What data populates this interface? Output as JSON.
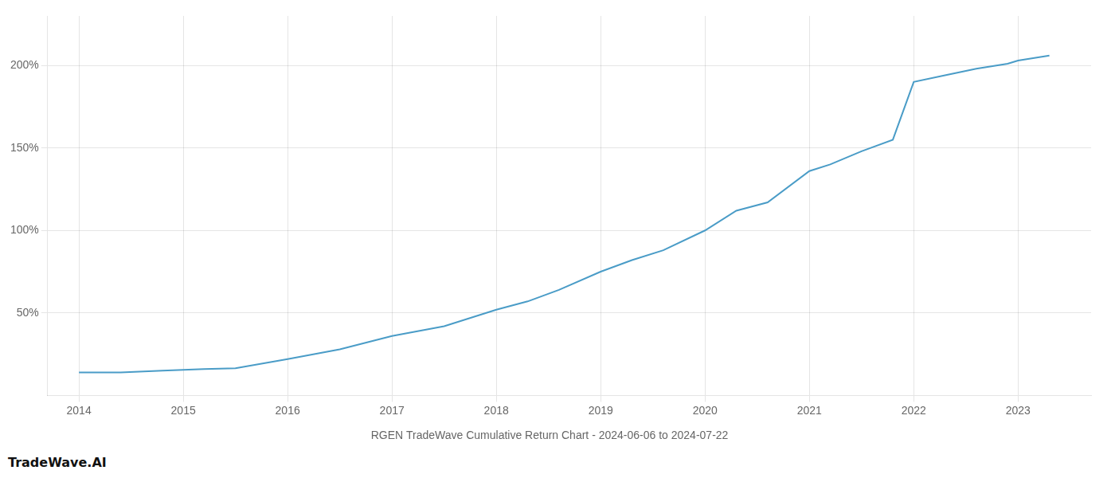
{
  "chart_data": {
    "type": "line",
    "title": "RGEN TradeWave Cumulative Return Chart - 2024-06-06 to 2024-07-22",
    "annotations": [
      "TradeWave.AI"
    ],
    "x": [
      2014.0,
      2014.4,
      2014.8,
      2015.0,
      2015.2,
      2015.5,
      2016.0,
      2016.5,
      2017.0,
      2017.5,
      2018.0,
      2018.3,
      2018.6,
      2019.0,
      2019.3,
      2019.6,
      2020.0,
      2020.3,
      2020.6,
      2021.0,
      2021.2,
      2021.5,
      2021.8,
      2022.0,
      2022.3,
      2022.6,
      2022.9,
      2023.0,
      2023.3
    ],
    "values": [
      14,
      14,
      15,
      15.5,
      16,
      16.5,
      22,
      28,
      36,
      42,
      52,
      57,
      64,
      75,
      82,
      88,
      100,
      112,
      117,
      136,
      140,
      148,
      155,
      190,
      194,
      198,
      201,
      203,
      206
    ],
    "color": "#4a9cc7",
    "xlim": [
      2013.7,
      2023.7
    ],
    "xticks": [
      2014,
      2015,
      2016,
      2017,
      2018,
      2019,
      2020,
      2021,
      2022,
      2023
    ],
    "ylim": [
      0,
      230
    ],
    "yticks": [
      {
        "value": 50,
        "label": "50%"
      },
      {
        "value": 100,
        "label": "100%"
      },
      {
        "value": 150,
        "label": "150%"
      },
      {
        "value": 200,
        "label": "200%"
      }
    ],
    "grid": true
  }
}
